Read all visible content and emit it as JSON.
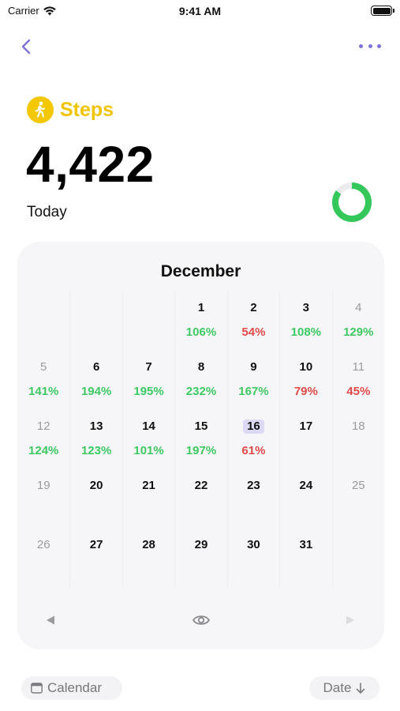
{
  "status_bar": {
    "carrier": "Carrier",
    "time": "9:41 AM"
  },
  "nav": {
    "back_icon": "chevron-left-icon",
    "more_icon": "ellipsis-icon"
  },
  "metric": {
    "title": "Steps",
    "value": "4,422",
    "period": "Today",
    "icon": "walking-person-icon",
    "accent_color": "#f3c800",
    "ring_progress": 0.85,
    "ring_color": "#34c759"
  },
  "calendar": {
    "month": "December",
    "weeks": [
      [
        {
          "day": "",
          "pct": ""
        },
        {
          "day": "",
          "pct": ""
        },
        {
          "day": "",
          "pct": ""
        },
        {
          "day": "1",
          "pct": "106%",
          "status": "good"
        },
        {
          "day": "2",
          "pct": "54%",
          "status": "bad"
        },
        {
          "day": "3",
          "pct": "108%",
          "status": "good"
        },
        {
          "day": "4",
          "pct": "129%",
          "status": "good",
          "muted": true
        }
      ],
      [
        {
          "day": "5",
          "pct": "141%",
          "status": "good",
          "muted": true
        },
        {
          "day": "6",
          "pct": "194%",
          "status": "good"
        },
        {
          "day": "7",
          "pct": "195%",
          "status": "good"
        },
        {
          "day": "8",
          "pct": "232%",
          "status": "good"
        },
        {
          "day": "9",
          "pct": "167%",
          "status": "good"
        },
        {
          "day": "10",
          "pct": "79%",
          "status": "bad"
        },
        {
          "day": "11",
          "pct": "45%",
          "status": "bad",
          "muted": true
        }
      ],
      [
        {
          "day": "12",
          "pct": "124%",
          "status": "good",
          "muted": true
        },
        {
          "day": "13",
          "pct": "123%",
          "status": "good"
        },
        {
          "day": "14",
          "pct": "101%",
          "status": "good"
        },
        {
          "day": "15",
          "pct": "197%",
          "status": "good"
        },
        {
          "day": "16",
          "pct": "61%",
          "status": "bad",
          "today": true
        },
        {
          "day": "17",
          "pct": ""
        },
        {
          "day": "18",
          "pct": "",
          "muted": true
        }
      ],
      [
        {
          "day": "19",
          "pct": "",
          "muted": true
        },
        {
          "day": "20",
          "pct": ""
        },
        {
          "day": "21",
          "pct": ""
        },
        {
          "day": "22",
          "pct": ""
        },
        {
          "day": "23",
          "pct": ""
        },
        {
          "day": "24",
          "pct": ""
        },
        {
          "day": "25",
          "pct": "",
          "muted": true
        }
      ],
      [
        {
          "day": "26",
          "pct": "",
          "muted": true
        },
        {
          "day": "27",
          "pct": ""
        },
        {
          "day": "28",
          "pct": ""
        },
        {
          "day": "29",
          "pct": ""
        },
        {
          "day": "30",
          "pct": ""
        },
        {
          "day": "31",
          "pct": ""
        },
        {
          "day": "",
          "pct": ""
        }
      ]
    ],
    "colors": {
      "good": "#3ec963",
      "bad": "#e04a4a",
      "today_highlight": "#dcd9f4"
    },
    "controls": {
      "prev_icon": "triangle-left-icon",
      "visibility_icon": "eye-icon",
      "next_icon": "triangle-right-icon"
    }
  },
  "bottom_bar": {
    "view_button": {
      "label": "Calendar",
      "icon": "calendar-icon"
    },
    "sort_button": {
      "label": "Date",
      "icon": "arrow-down-icon"
    }
  }
}
